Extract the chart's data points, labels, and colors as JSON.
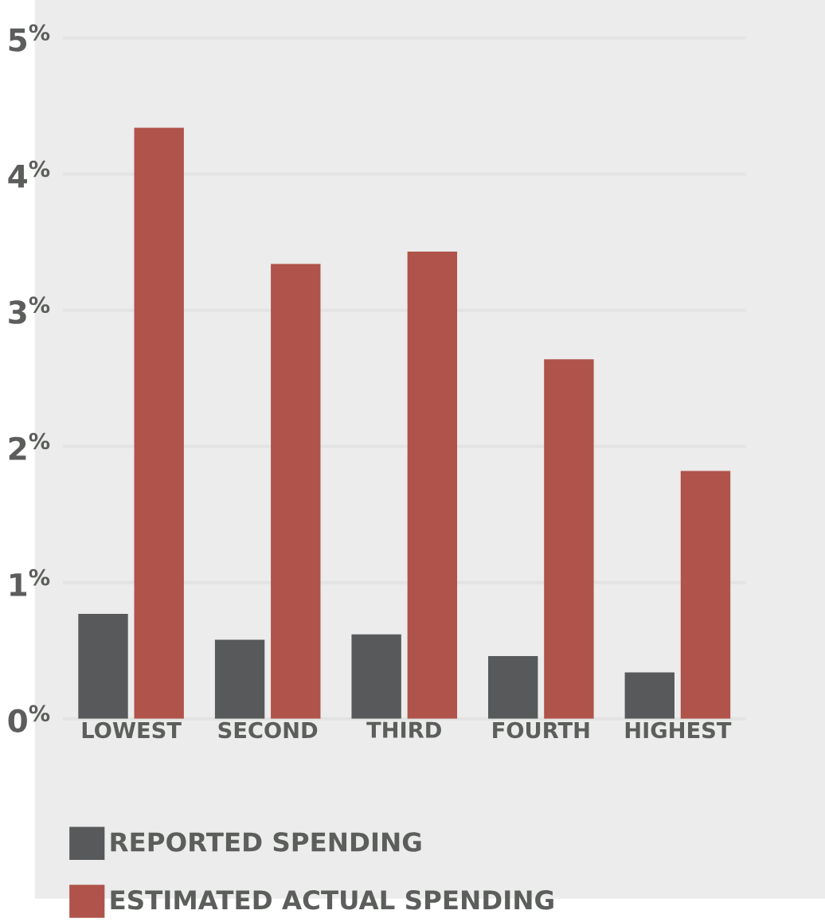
{
  "chart_data": {
    "type": "bar",
    "categories": [
      "LOWEST",
      "SECOND",
      "THIRD",
      "FOURTH",
      "HIGHEST"
    ],
    "series": [
      {
        "name": "REPORTED SPENDING",
        "color": "#58595b",
        "values": [
          0.77,
          0.58,
          0.62,
          0.46,
          0.34
        ]
      },
      {
        "name": "ESTIMATED ACTUAL SPENDING",
        "color": "#b0534a",
        "values": [
          4.34,
          3.34,
          3.43,
          2.64,
          1.82
        ]
      }
    ],
    "ylim": [
      0,
      5
    ],
    "yticks": [
      {
        "value": 0,
        "label": "0$^{%}$"
      },
      {
        "value": 1,
        "label": "1$^{%}$"
      },
      {
        "value": 2,
        "label": "2$^{%}$"
      },
      {
        "value": 3,
        "label": "3$^{%}$"
      },
      {
        "value": 4,
        "label": "4$^{%}$"
      },
      {
        "value": 5,
        "label": "5$^{%}$"
      }
    ],
    "grid": "y",
    "legend": "bottom"
  }
}
